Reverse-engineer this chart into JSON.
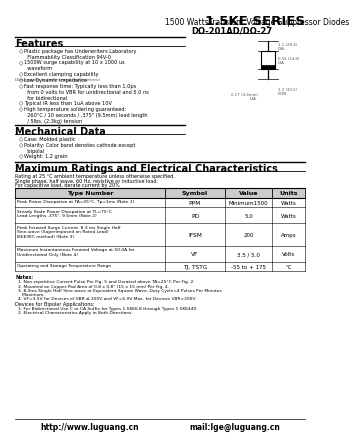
{
  "title": "1.5KE SERIES",
  "subtitle": "1500 WattsTransient Voltage Suppressor Diodes",
  "package": "DO-201AD/DO-27",
  "features_title": "Features",
  "features": [
    "Plastic package has Underwriters Laboratory\n  Flammability Classification 94V-0",
    "1500W surge capability at 10 x 1000 us\n  waveform",
    "Excellent clamping capability",
    "Low Dynamic impedance",
    "Fast response time: Typically less than 1.0ps\n  from 0 volts to VBR for unidirectional and 5.0 ns\n  for bidirectional",
    "Typical IR less than 1uA above 10V",
    "High temperature soldering guaranteed:\n  260°C / 10 seconds / .375\" (9.5mm) lead length\n  / 5lbs. (2.3kg) tension"
  ],
  "mech_title": "Mechanical Data",
  "mech": [
    "Case: Molded plastic",
    "Polarity: Color band denotes cathode except\n  bipolal",
    "Weight: 1.2 grain"
  ],
  "max_title": "Maximum Ratings and Electrical Characteristics",
  "max_subtitle": "Rating at 25 °C ambient temperature unless otherwise specified.",
  "max_subtitle2": "Single phase, half wave, 60 Hz, resistive or inductive load.",
  "max_subtitle3": "For capacitive load, derate current by 20%",
  "table_headers": [
    "Type Number",
    "Symbol",
    "Value",
    "Units"
  ],
  "table_rows": [
    [
      "Peak Power Dissipation at TA=25°C, Tp=1ms (Note 1)",
      "PPM",
      "Minimum1500",
      "Watts"
    ],
    [
      "Steady State Power Dissipation at TL=75°C\nLead Lengths .375\", 9.5mm (Note 2)",
      "PD",
      "5.0",
      "Watts"
    ],
    [
      "Peak Forward Surge Current, 8.3 ms Single Half\nSine-wave (Superimposed on Rated Load)\nIEEE/IEC method) (Note 3)",
      "IFSM",
      "200",
      "Amps"
    ],
    [
      "Maximum Instantaneous Forward Voltage at 50.0A for\nUnidirectional Only (Note 4)",
      "VF",
      "3.5 / 5.0",
      "Volts"
    ],
    [
      "Operating and Storage Temperature Range",
      "TJ, TSTG",
      "-55 to + 175",
      "°C"
    ]
  ],
  "notes_title": "Notes:",
  "notes": [
    "1. Non-repetitive Current Pulse Per Fig. 5 and Derated above TA=25°C Per Fig. 2.",
    "2. Mounted on Copper Pad Area of 0.8 x 0.8\" (15 x 15 mm) Per Fig. 4.",
    "3. 8.3ms Single Half Sine-wave or Equivalent Square Wave, Duty Cycle=4 Pulses Per Minutes\n   Maximum.",
    "4. VF=3.5V for Devices of VBR ≤ 200V and VF=5.0V Max. for Devices VBR>200V."
  ],
  "bipolar_title": "Devices for Bipolar Applications:",
  "bipolar_notes": [
    "1. For Bidirectional Use C or CA Suffix for Types 1.5KE6.8 through Types 1.5KE440.",
    "2. Electrical Characteristics Apply in Both Directions."
  ],
  "footer_left": "http://www.luguang.cn",
  "footer_right": "mail:lge@luguang.cn",
  "bg_color": "#ffffff",
  "text_color": "#000000"
}
